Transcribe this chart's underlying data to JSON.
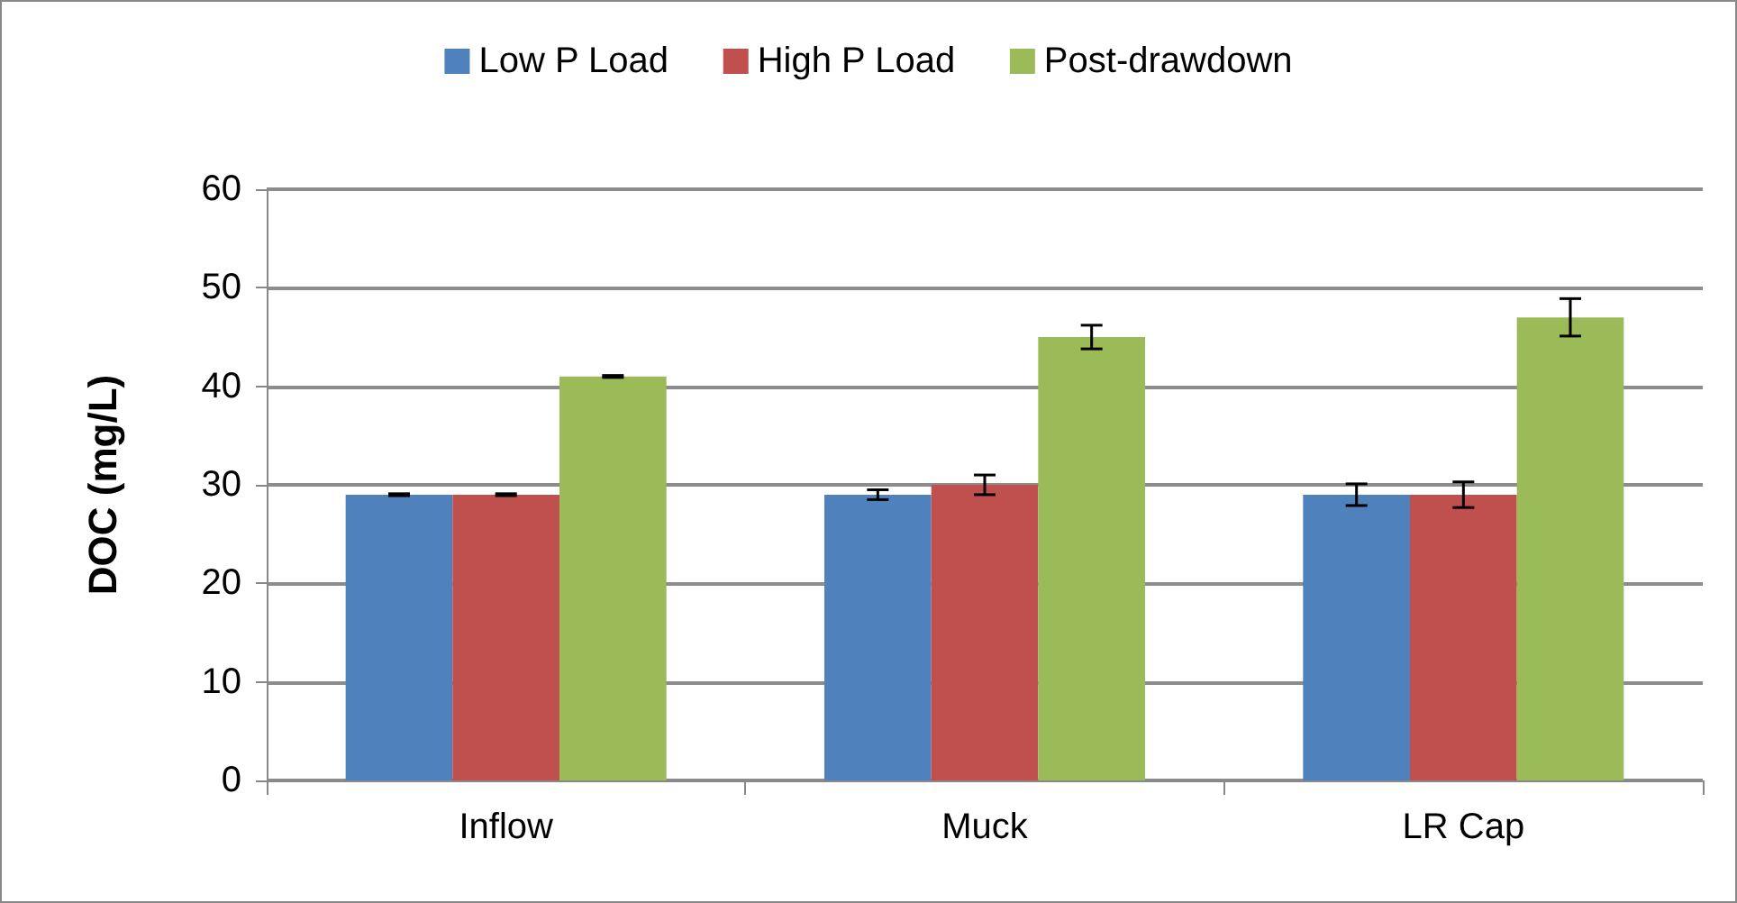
{
  "chart_data": {
    "type": "bar",
    "ylabel": "DOC (mg/L)",
    "categories": [
      "Inflow",
      "Muck",
      "LR Cap"
    ],
    "series": [
      {
        "name": "Low P Load",
        "color": "#4f81bd",
        "values": [
          29,
          29,
          29
        ],
        "errors": [
          0.1,
          0.5,
          1.1
        ]
      },
      {
        "name": "High P Load",
        "color": "#c0504d",
        "values": [
          29,
          30,
          29
        ],
        "errors": [
          0.1,
          1,
          1.3
        ]
      },
      {
        "name": "Post-drawdown",
        "color": "#9bbb59",
        "values": [
          41,
          45,
          47
        ],
        "errors": [
          0.1,
          1.2,
          1.9
        ]
      }
    ],
    "ylim": [
      0,
      60
    ],
    "yticks": [
      0,
      10,
      20,
      30,
      40,
      50,
      60
    ],
    "grid": "y",
    "legend": "top"
  }
}
